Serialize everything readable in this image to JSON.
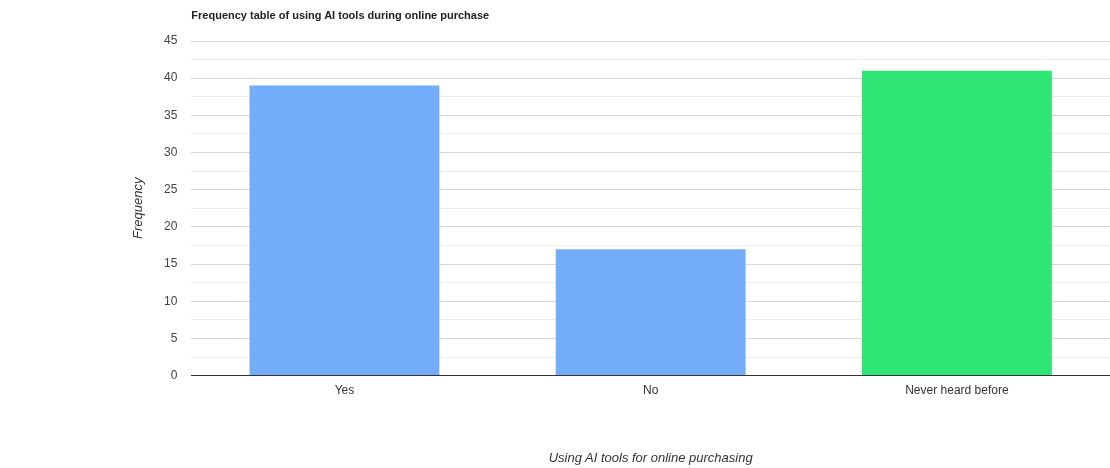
{
  "chart_data": {
    "type": "bar",
    "title": "Frequency table of using AI tools during online purchase",
    "xlabel": "Using AI tools for online purchasing",
    "ylabel": "Frequency",
    "categories": [
      "Yes",
      "No",
      "Never heard before"
    ],
    "values": [
      39,
      17,
      41
    ],
    "colors": [
      "#73acf8",
      "#73acf8",
      "#2de475"
    ],
    "ylim": [
      0,
      45
    ],
    "yticks": [
      0,
      {
        "value": 2.5,
        "label": null
      },
      5,
      {
        "value": 7.5,
        "label": null
      },
      10,
      {
        "value": 12.5,
        "label": null
      },
      15,
      {
        "value": 17.5,
        "label": null
      },
      20,
      {
        "value": 22.5,
        "label": null
      },
      25,
      {
        "value": 27.5,
        "label": null
      },
      30,
      {
        "value": 32.5,
        "label": null
      },
      35,
      {
        "value": 37.5,
        "label": null
      },
      40,
      {
        "value": 42.5,
        "label": null
      },
      45
    ],
    "grid": "y",
    "legend": false
  }
}
